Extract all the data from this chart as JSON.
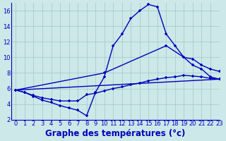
{
  "xlabel": "Graphe des températures (°c)",
  "bg_color": "#cce8e8",
  "grid_color": "#aacccc",
  "line_color": "#0000bb",
  "xlim": [
    -0.5,
    23
  ],
  "ylim": [
    2,
    17
  ],
  "yticks": [
    2,
    4,
    6,
    8,
    10,
    12,
    14,
    16
  ],
  "xticks": [
    0,
    1,
    2,
    3,
    4,
    5,
    6,
    7,
    8,
    9,
    10,
    11,
    12,
    13,
    14,
    15,
    16,
    17,
    18,
    19,
    20,
    21,
    22,
    23
  ],
  "line1_x": [
    0,
    1,
    2,
    3,
    4,
    5,
    6,
    7,
    8,
    9,
    10,
    11,
    12,
    13,
    14,
    15,
    16,
    17,
    18,
    19,
    20,
    21,
    22,
    23
  ],
  "line1_y": [
    5.8,
    5.5,
    5.0,
    4.5,
    4.2,
    3.8,
    3.5,
    3.2,
    2.5,
    5.5,
    7.5,
    11.5,
    13.0,
    15.0,
    16.0,
    16.8,
    16.5,
    13.0,
    11.5,
    10.0,
    9.0,
    8.5,
    7.5,
    7.2
  ],
  "line2_x": [
    0,
    1,
    2,
    3,
    4,
    5,
    6,
    7,
    8,
    9,
    10,
    11,
    12,
    13,
    14,
    15,
    16,
    17,
    18,
    19,
    20,
    21,
    22,
    23
  ],
  "line2_y": [
    5.8,
    5.5,
    5.1,
    4.8,
    4.6,
    4.4,
    4.4,
    4.4,
    5.2,
    5.4,
    5.7,
    6.0,
    6.2,
    6.5,
    6.7,
    7.0,
    7.2,
    7.4,
    7.5,
    7.7,
    7.6,
    7.5,
    7.3,
    7.2
  ],
  "line3_x": [
    0,
    10,
    17,
    19,
    20,
    21,
    22,
    23
  ],
  "line3_y": [
    5.8,
    8.0,
    11.5,
    10.0,
    9.8,
    9.0,
    8.5,
    8.2
  ],
  "line4_x": [
    0,
    23
  ],
  "line4_y": [
    5.8,
    7.2
  ],
  "xlabel_fontsize": 8.5,
  "tick_fontsize": 6.0
}
